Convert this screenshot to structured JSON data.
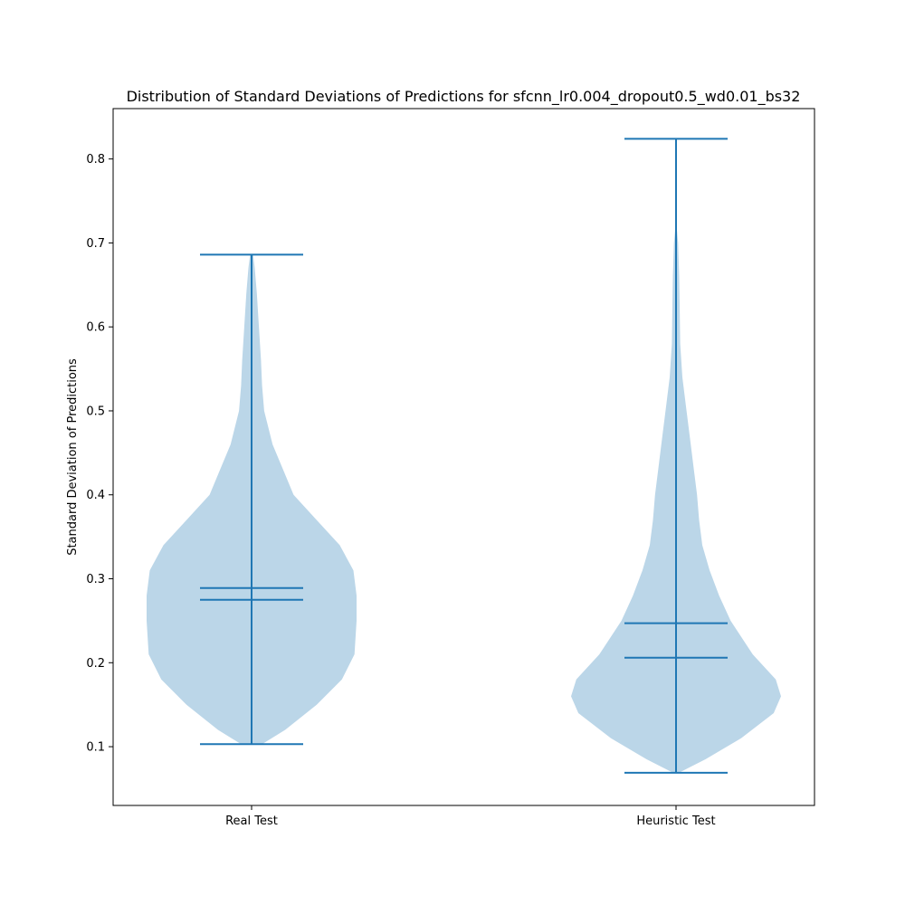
{
  "chart_data": {
    "type": "violin",
    "title": "Distribution of Standard Deviations of Predictions for sfcnn_lr0.004_dropout0.5_wd0.01_bs32",
    "xlabel": "",
    "ylabel": "Standard Deviation of Predictions",
    "categories": [
      "Real Test",
      "Heuristic Test"
    ],
    "yticks": [
      0.1,
      0.2,
      0.3,
      0.4,
      0.5,
      0.6,
      0.7,
      0.8
    ],
    "ylim": [
      0.03,
      0.86
    ],
    "grid": false,
    "colors": {
      "body": "#bbd6e8",
      "line": "#1f77b4"
    },
    "series": [
      {
        "min": 0.103,
        "max": 0.686,
        "mean": 0.289,
        "median": 0.275,
        "density": [
          [
            0.103,
            0.1
          ],
          [
            0.12,
            0.32
          ],
          [
            0.15,
            0.62
          ],
          [
            0.18,
            0.86
          ],
          [
            0.21,
            0.98
          ],
          [
            0.25,
            1.0
          ],
          [
            0.28,
            1.0
          ],
          [
            0.31,
            0.97
          ],
          [
            0.34,
            0.84
          ],
          [
            0.37,
            0.62
          ],
          [
            0.4,
            0.4
          ],
          [
            0.43,
            0.3
          ],
          [
            0.46,
            0.2
          ],
          [
            0.5,
            0.12
          ],
          [
            0.53,
            0.1
          ],
          [
            0.56,
            0.09
          ],
          [
            0.6,
            0.07
          ],
          [
            0.64,
            0.05
          ],
          [
            0.67,
            0.03
          ],
          [
            0.686,
            0.015
          ]
        ]
      },
      {
        "min": 0.069,
        "max": 0.824,
        "mean": 0.247,
        "median": 0.206,
        "density": [
          [
            0.069,
            0.03
          ],
          [
            0.085,
            0.28
          ],
          [
            0.11,
            0.62
          ],
          [
            0.14,
            0.93
          ],
          [
            0.16,
            1.0
          ],
          [
            0.18,
            0.95
          ],
          [
            0.21,
            0.73
          ],
          [
            0.25,
            0.52
          ],
          [
            0.28,
            0.41
          ],
          [
            0.31,
            0.32
          ],
          [
            0.34,
            0.25
          ],
          [
            0.37,
            0.22
          ],
          [
            0.4,
            0.2
          ],
          [
            0.43,
            0.17
          ],
          [
            0.47,
            0.13
          ],
          [
            0.5,
            0.1
          ],
          [
            0.54,
            0.06
          ],
          [
            0.58,
            0.04
          ],
          [
            0.62,
            0.035
          ],
          [
            0.66,
            0.03
          ],
          [
            0.7,
            0.02
          ],
          [
            0.72,
            0.005
          ]
        ]
      }
    ]
  }
}
